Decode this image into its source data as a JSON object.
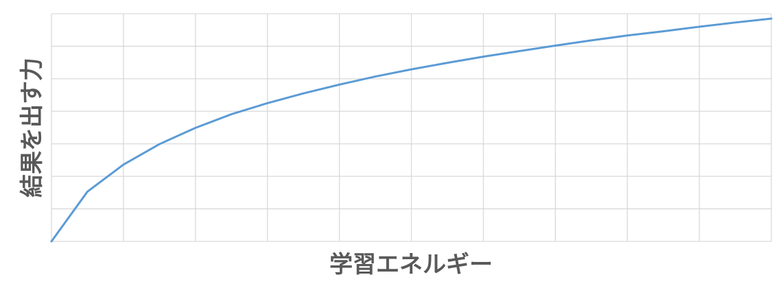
{
  "chart_data": {
    "type": "line",
    "title": "",
    "xlabel": "学習エネルギー",
    "ylabel": "結果を出す力",
    "x": [
      0,
      0.5,
      1,
      1.5,
      2,
      2.5,
      3,
      3.5,
      4,
      4.5,
      5,
      5.5,
      6,
      6.5,
      7,
      7.5,
      8,
      8.5,
      9,
      9.5,
      10
    ],
    "series": [
      {
        "name": "",
        "color": "#5B9BD5",
        "values": [
          0,
          1.53,
          2.36,
          2.99,
          3.49,
          3.91,
          4.25,
          4.55,
          4.82,
          5.07,
          5.29,
          5.49,
          5.68,
          5.85,
          6.02,
          6.18,
          6.33,
          6.46,
          6.6,
          6.73,
          6.85
        ]
      }
    ],
    "xlim": [
      0,
      10
    ],
    "ylim": [
      0,
      7
    ],
    "x_gridlines": 10,
    "y_gridlines": 7,
    "grid": true,
    "grid_color": "#D9D9D9",
    "axis_label_color": "#595959",
    "show_tick_labels": false,
    "legend": "none"
  }
}
